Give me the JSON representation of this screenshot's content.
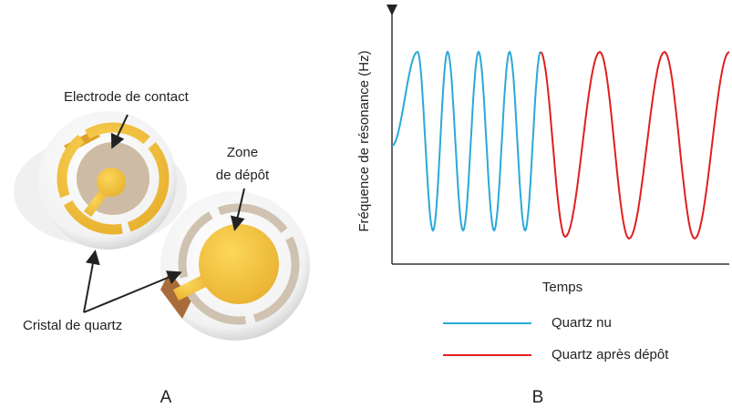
{
  "panel_a": {
    "label": "A",
    "electrode_label": "Electrode de contact",
    "zone_label": [
      "Zone",
      "de dépôt"
    ],
    "crystal_label": "Cristal de quartz"
  },
  "panel_b": {
    "label": "B",
    "y_axis_label": "Fréquence de résonance (Hz)",
    "x_axis_label": "Temps",
    "legend": [
      "Quartz nu",
      "Quartz après dépôt"
    ]
  }
}
